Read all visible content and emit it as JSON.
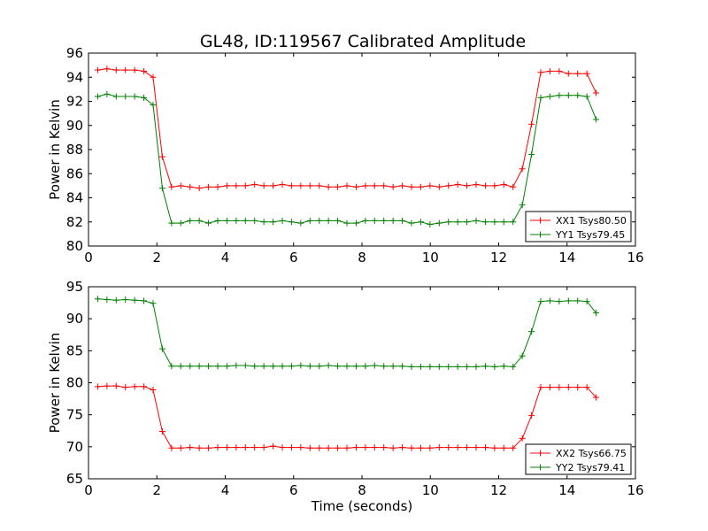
{
  "chart_data": [
    {
      "type": "line",
      "title": "GL48, ID:119567 Calibrated Amplitude",
      "xlabel": "",
      "ylabel": "Power in Kelvin",
      "xlim": [
        0,
        16
      ],
      "ylim": [
        80,
        96
      ],
      "xticks": [
        0,
        2,
        4,
        6,
        8,
        10,
        12,
        14,
        16
      ],
      "yticks": [
        80,
        82,
        84,
        86,
        88,
        90,
        92,
        94,
        96
      ],
      "grid": false,
      "legend": "lower-right",
      "x": [
        0.27,
        0.54,
        0.81,
        1.08,
        1.35,
        1.62,
        1.89,
        2.16,
        2.43,
        2.7,
        2.97,
        3.24,
        3.51,
        3.78,
        4.05,
        4.32,
        4.59,
        4.86,
        5.13,
        5.4,
        5.67,
        5.94,
        6.21,
        6.48,
        6.75,
        7.02,
        7.29,
        7.56,
        7.83,
        8.1,
        8.37,
        8.64,
        8.91,
        9.18,
        9.45,
        9.72,
        9.99,
        10.26,
        10.53,
        10.8,
        11.07,
        11.34,
        11.61,
        11.88,
        12.15,
        12.42,
        12.69,
        12.96,
        13.23,
        13.5,
        13.77,
        14.04,
        14.31,
        14.58,
        14.85
      ],
      "series": [
        {
          "name": "XX1 Tsys80.50",
          "color": "#ff0000",
          "values": [
            94.6,
            94.7,
            94.6,
            94.6,
            94.6,
            94.5,
            94.0,
            87.4,
            84.9,
            85.0,
            84.9,
            84.8,
            84.9,
            84.9,
            85.0,
            85.0,
            85.0,
            85.1,
            85.0,
            85.0,
            85.1,
            85.0,
            85.0,
            85.0,
            85.0,
            84.9,
            84.9,
            85.0,
            84.9,
            85.0,
            85.0,
            85.0,
            84.9,
            85.0,
            84.9,
            84.9,
            85.0,
            84.9,
            85.0,
            85.1,
            85.0,
            85.1,
            85.0,
            85.0,
            85.1,
            84.9,
            86.4,
            90.1,
            94.4,
            94.5,
            94.5,
            94.3,
            94.3,
            94.3,
            92.7
          ]
        },
        {
          "name": "YY1 Tsys79.45",
          "color": "#008000",
          "values": [
            92.4,
            92.6,
            92.4,
            92.4,
            92.4,
            92.3,
            91.7,
            84.8,
            81.9,
            81.9,
            82.1,
            82.1,
            81.9,
            82.1,
            82.1,
            82.1,
            82.1,
            82.1,
            82.0,
            82.0,
            82.1,
            82.0,
            81.9,
            82.1,
            82.1,
            82.1,
            82.1,
            81.9,
            81.9,
            82.1,
            82.1,
            82.1,
            82.1,
            82.1,
            81.9,
            82.0,
            81.8,
            81.9,
            82.0,
            82.0,
            82.0,
            82.1,
            82.0,
            82.0,
            82.0,
            82.0,
            83.4,
            87.6,
            92.3,
            92.4,
            92.5,
            92.5,
            92.5,
            92.4,
            90.5
          ]
        }
      ]
    },
    {
      "type": "line",
      "title": "",
      "xlabel": "Time (seconds)",
      "ylabel": "Power in Kelvin",
      "xlim": [
        0,
        16
      ],
      "ylim": [
        65,
        95
      ],
      "xticks": [
        0,
        2,
        4,
        6,
        8,
        10,
        12,
        14,
        16
      ],
      "yticks": [
        65,
        70,
        75,
        80,
        85,
        90,
        95
      ],
      "grid": false,
      "legend": "lower-right",
      "x": [
        0.27,
        0.54,
        0.81,
        1.08,
        1.35,
        1.62,
        1.89,
        2.16,
        2.43,
        2.7,
        2.97,
        3.24,
        3.51,
        3.78,
        4.05,
        4.32,
        4.59,
        4.86,
        5.13,
        5.4,
        5.67,
        5.94,
        6.21,
        6.48,
        6.75,
        7.02,
        7.29,
        7.56,
        7.83,
        8.1,
        8.37,
        8.64,
        8.91,
        9.18,
        9.45,
        9.72,
        9.99,
        10.26,
        10.53,
        10.8,
        11.07,
        11.34,
        11.61,
        11.88,
        12.15,
        12.42,
        12.69,
        12.96,
        13.23,
        13.5,
        13.77,
        14.04,
        14.31,
        14.58,
        14.85
      ],
      "series": [
        {
          "name": "XX2 Tsys66.75",
          "color": "#ff0000",
          "values": [
            79.4,
            79.5,
            79.5,
            79.3,
            79.4,
            79.4,
            78.9,
            72.4,
            69.8,
            69.8,
            69.9,
            69.8,
            69.8,
            69.9,
            69.9,
            69.9,
            69.9,
            69.9,
            69.9,
            70.1,
            69.9,
            69.9,
            69.9,
            69.8,
            69.8,
            69.8,
            69.8,
            69.8,
            69.9,
            69.9,
            69.9,
            69.9,
            69.8,
            69.9,
            69.8,
            69.8,
            69.8,
            69.9,
            69.9,
            69.9,
            69.9,
            69.9,
            69.9,
            69.8,
            69.8,
            69.8,
            71.3,
            74.9,
            79.3,
            79.3,
            79.3,
            79.3,
            79.3,
            79.3,
            77.7
          ]
        },
        {
          "name": "YY2 Tsys79.41",
          "color": "#008000",
          "values": [
            93.1,
            93.0,
            92.9,
            93.0,
            92.9,
            92.8,
            92.4,
            85.3,
            82.6,
            82.6,
            82.6,
            82.6,
            82.6,
            82.6,
            82.6,
            82.7,
            82.7,
            82.6,
            82.6,
            82.6,
            82.6,
            82.6,
            82.7,
            82.6,
            82.6,
            82.7,
            82.6,
            82.6,
            82.6,
            82.6,
            82.7,
            82.6,
            82.6,
            82.6,
            82.5,
            82.5,
            82.5,
            82.5,
            82.5,
            82.5,
            82.5,
            82.5,
            82.6,
            82.5,
            82.6,
            82.5,
            84.2,
            88.0,
            92.7,
            92.8,
            92.7,
            92.8,
            92.8,
            92.7,
            90.9
          ]
        }
      ]
    }
  ]
}
